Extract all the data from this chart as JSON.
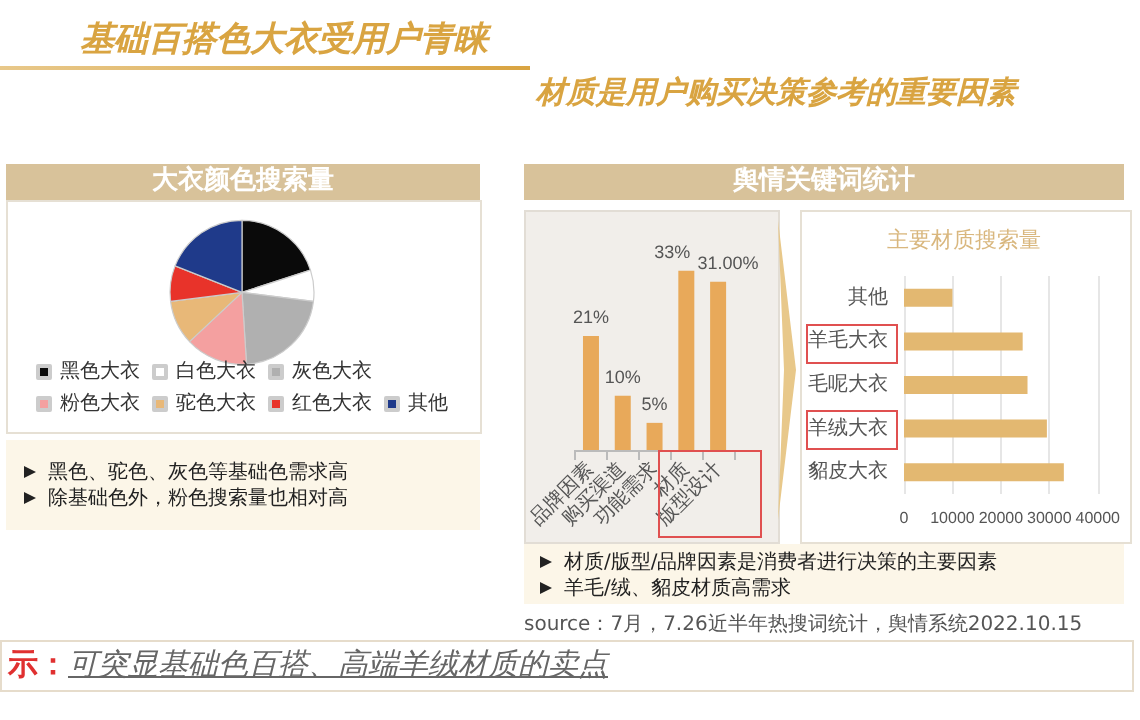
{
  "chart_data": [
    {
      "type": "pie",
      "title": "大衣颜色搜索量",
      "categories": [
        "黑色大衣",
        "白色大衣",
        "灰色大衣",
        "粉色大衣",
        "驼色大衣",
        "红色大衣",
        "其他"
      ],
      "values": [
        20,
        7,
        22,
        14,
        10,
        8,
        19
      ],
      "colors": [
        "#0a0a0a",
        "#ffffff",
        "#b0b0b0",
        "#f4a0a0",
        "#e8b878",
        "#e8332a",
        "#1f3a8a"
      ],
      "legend": "bottom",
      "annotations": [
        "基础百搭色大衣受用户青睐",
        "黑色、驼色、灰色等基础色需求高",
        "除基础色外，粉色搜索量也相对高",
        "示：可突显基础色百搭、高端羊绒材质的卖点"
      ]
    },
    {
      "type": "bar",
      "title": "舆情关键词统计",
      "categories": [
        "品牌因素",
        "购买渠道",
        "功能需求",
        "材质",
        "版型设计"
      ],
      "values": [
        21,
        10,
        5,
        33,
        31
      ],
      "value_labels": [
        "21%",
        "10%",
        "5%",
        "33%",
        "31.00%"
      ],
      "color": "#e8a95a",
      "annotations": [
        "材质是用户购买决策参考的重要因素",
        "材质/版型/品牌因素是消费者进行决策的主要因素",
        "羊毛/绒、貂皮材质高需求",
        "source：7月，7.26近半年热搜词统计，舆情系统2022.10.15"
      ]
    },
    {
      "type": "bar",
      "orientation": "horizontal",
      "title": "主要材质搜索量",
      "categories": [
        "其他",
        "羊毛大衣",
        "毛呢大衣",
        "羊绒大衣",
        "貂皮大衣"
      ],
      "values": [
        10000,
        24500,
        25500,
        29500,
        33000
      ],
      "color": "#e3b871",
      "xlim": [
        0,
        40000
      ],
      "xticks": [
        0,
        10000,
        20000,
        30000,
        40000
      ],
      "grid": "x"
    }
  ]
}
